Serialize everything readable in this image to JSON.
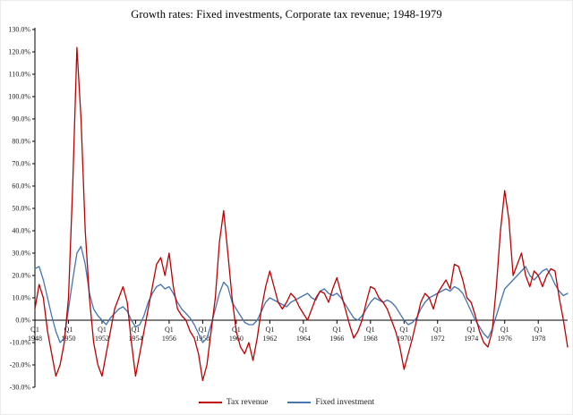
{
  "title": "Growth rates: Fixed investments, Corporate tax revenue; 1948-1979",
  "legend": {
    "tax_revenue": "Tax revenue",
    "fixed_investment": "Fixed investment"
  },
  "colors": {
    "tax_revenue": "#c00000",
    "fixed_investment": "#4575b4",
    "axis": "#000000",
    "tick_text": "#1a1a1a"
  },
  "y_axis": {
    "min": -30,
    "max": 130,
    "step": 10,
    "suffix": "%",
    "decimals": 1
  },
  "x_axis": {
    "tick_every_quarters": 8,
    "tick_labels": [
      {
        "q": "Q1",
        "year": "1948"
      },
      {
        "q": "Q1",
        "year": "1950"
      },
      {
        "q": "Q1",
        "year": "1952"
      },
      {
        "q": "Q1",
        "year": "1954"
      },
      {
        "q": "Q1",
        "year": "1956"
      },
      {
        "q": "Q1",
        "year": "1958"
      },
      {
        "q": "Q1",
        "year": "1960"
      },
      {
        "q": "Q1",
        "year": "1962"
      },
      {
        "q": "Q1",
        "year": "1964"
      },
      {
        "q": "Q1",
        "year": "1966"
      },
      {
        "q": "Q1",
        "year": "1968"
      },
      {
        "q": "Q1",
        "year": "1970"
      },
      {
        "q": "Q1",
        "year": "1972"
      },
      {
        "q": "Q1",
        "year": "1974"
      },
      {
        "q": "Q1",
        "year": "1976"
      },
      {
        "q": "Q1",
        "year": "1978"
      }
    ]
  },
  "chart_data": {
    "type": "line",
    "title": "Growth rates: Fixed investments, Corporate tax revenue; 1948-1979",
    "x_unit": "quarter",
    "x_start": "1948-Q1",
    "x_end": "1979-Q4",
    "ylim": [
      -30,
      130
    ],
    "grid": false,
    "legend_position": "bottom",
    "series": [
      {
        "name": "Tax revenue",
        "color": "#c00000",
        "values": [
          5,
          16,
          10,
          -5,
          -15,
          -25,
          -20,
          -10,
          10,
          60,
          122,
          90,
          40,
          10,
          -10,
          -20,
          -25,
          -15,
          -5,
          5,
          10,
          15,
          8,
          -10,
          -25,
          -15,
          -5,
          5,
          15,
          25,
          28,
          20,
          30,
          15,
          5,
          2,
          0,
          -5,
          -8,
          -15,
          -27,
          -20,
          -5,
          10,
          35,
          49,
          30,
          10,
          -5,
          -12,
          -15,
          -10,
          -18,
          -8,
          5,
          15,
          22,
          15,
          8,
          5,
          8,
          12,
          10,
          6,
          3,
          0,
          5,
          10,
          13,
          12,
          8,
          14,
          19,
          12,
          5,
          -2,
          -8,
          -5,
          0,
          8,
          15,
          14,
          10,
          8,
          5,
          0,
          -5,
          -12,
          -22,
          -15,
          -8,
          0,
          8,
          12,
          10,
          5,
          12,
          15,
          18,
          14,
          25,
          24,
          18,
          10,
          8,
          2,
          -5,
          -10,
          -12,
          -5,
          15,
          40,
          58,
          45,
          20,
          25,
          30,
          20,
          15,
          22,
          20,
          15,
          20,
          23,
          22,
          10,
          0,
          -12
        ]
      },
      {
        "name": "Fixed investment",
        "color": "#4575b4",
        "values": [
          23,
          24,
          18,
          10,
          2,
          -5,
          -10,
          -8,
          5,
          18,
          30,
          33,
          25,
          12,
          5,
          2,
          0,
          -2,
          1,
          3,
          5,
          6,
          4,
          0,
          -3,
          -2,
          2,
          8,
          12,
          15,
          16,
          14,
          15,
          12,
          8,
          5,
          3,
          1,
          -2,
          -6,
          -10,
          -8,
          -2,
          5,
          12,
          17,
          15,
          8,
          5,
          2,
          -1,
          -2,
          -2,
          0,
          4,
          8,
          10,
          9,
          8,
          7,
          6,
          8,
          9,
          10,
          11,
          12,
          10,
          9,
          13,
          14,
          12,
          11,
          12,
          10,
          7,
          4,
          1,
          0,
          2,
          5,
          8,
          10,
          9,
          8,
          9,
          8,
          6,
          3,
          0,
          -2,
          -1,
          1,
          5,
          8,
          10,
          11,
          12,
          13,
          14,
          13,
          15,
          14,
          12,
          8,
          4,
          0,
          -3,
          -6,
          -8,
          -4,
          2,
          8,
          14,
          16,
          18,
          20,
          22,
          24,
          20,
          18,
          20,
          22,
          23,
          20,
          16,
          13,
          11,
          12
        ]
      }
    ]
  }
}
